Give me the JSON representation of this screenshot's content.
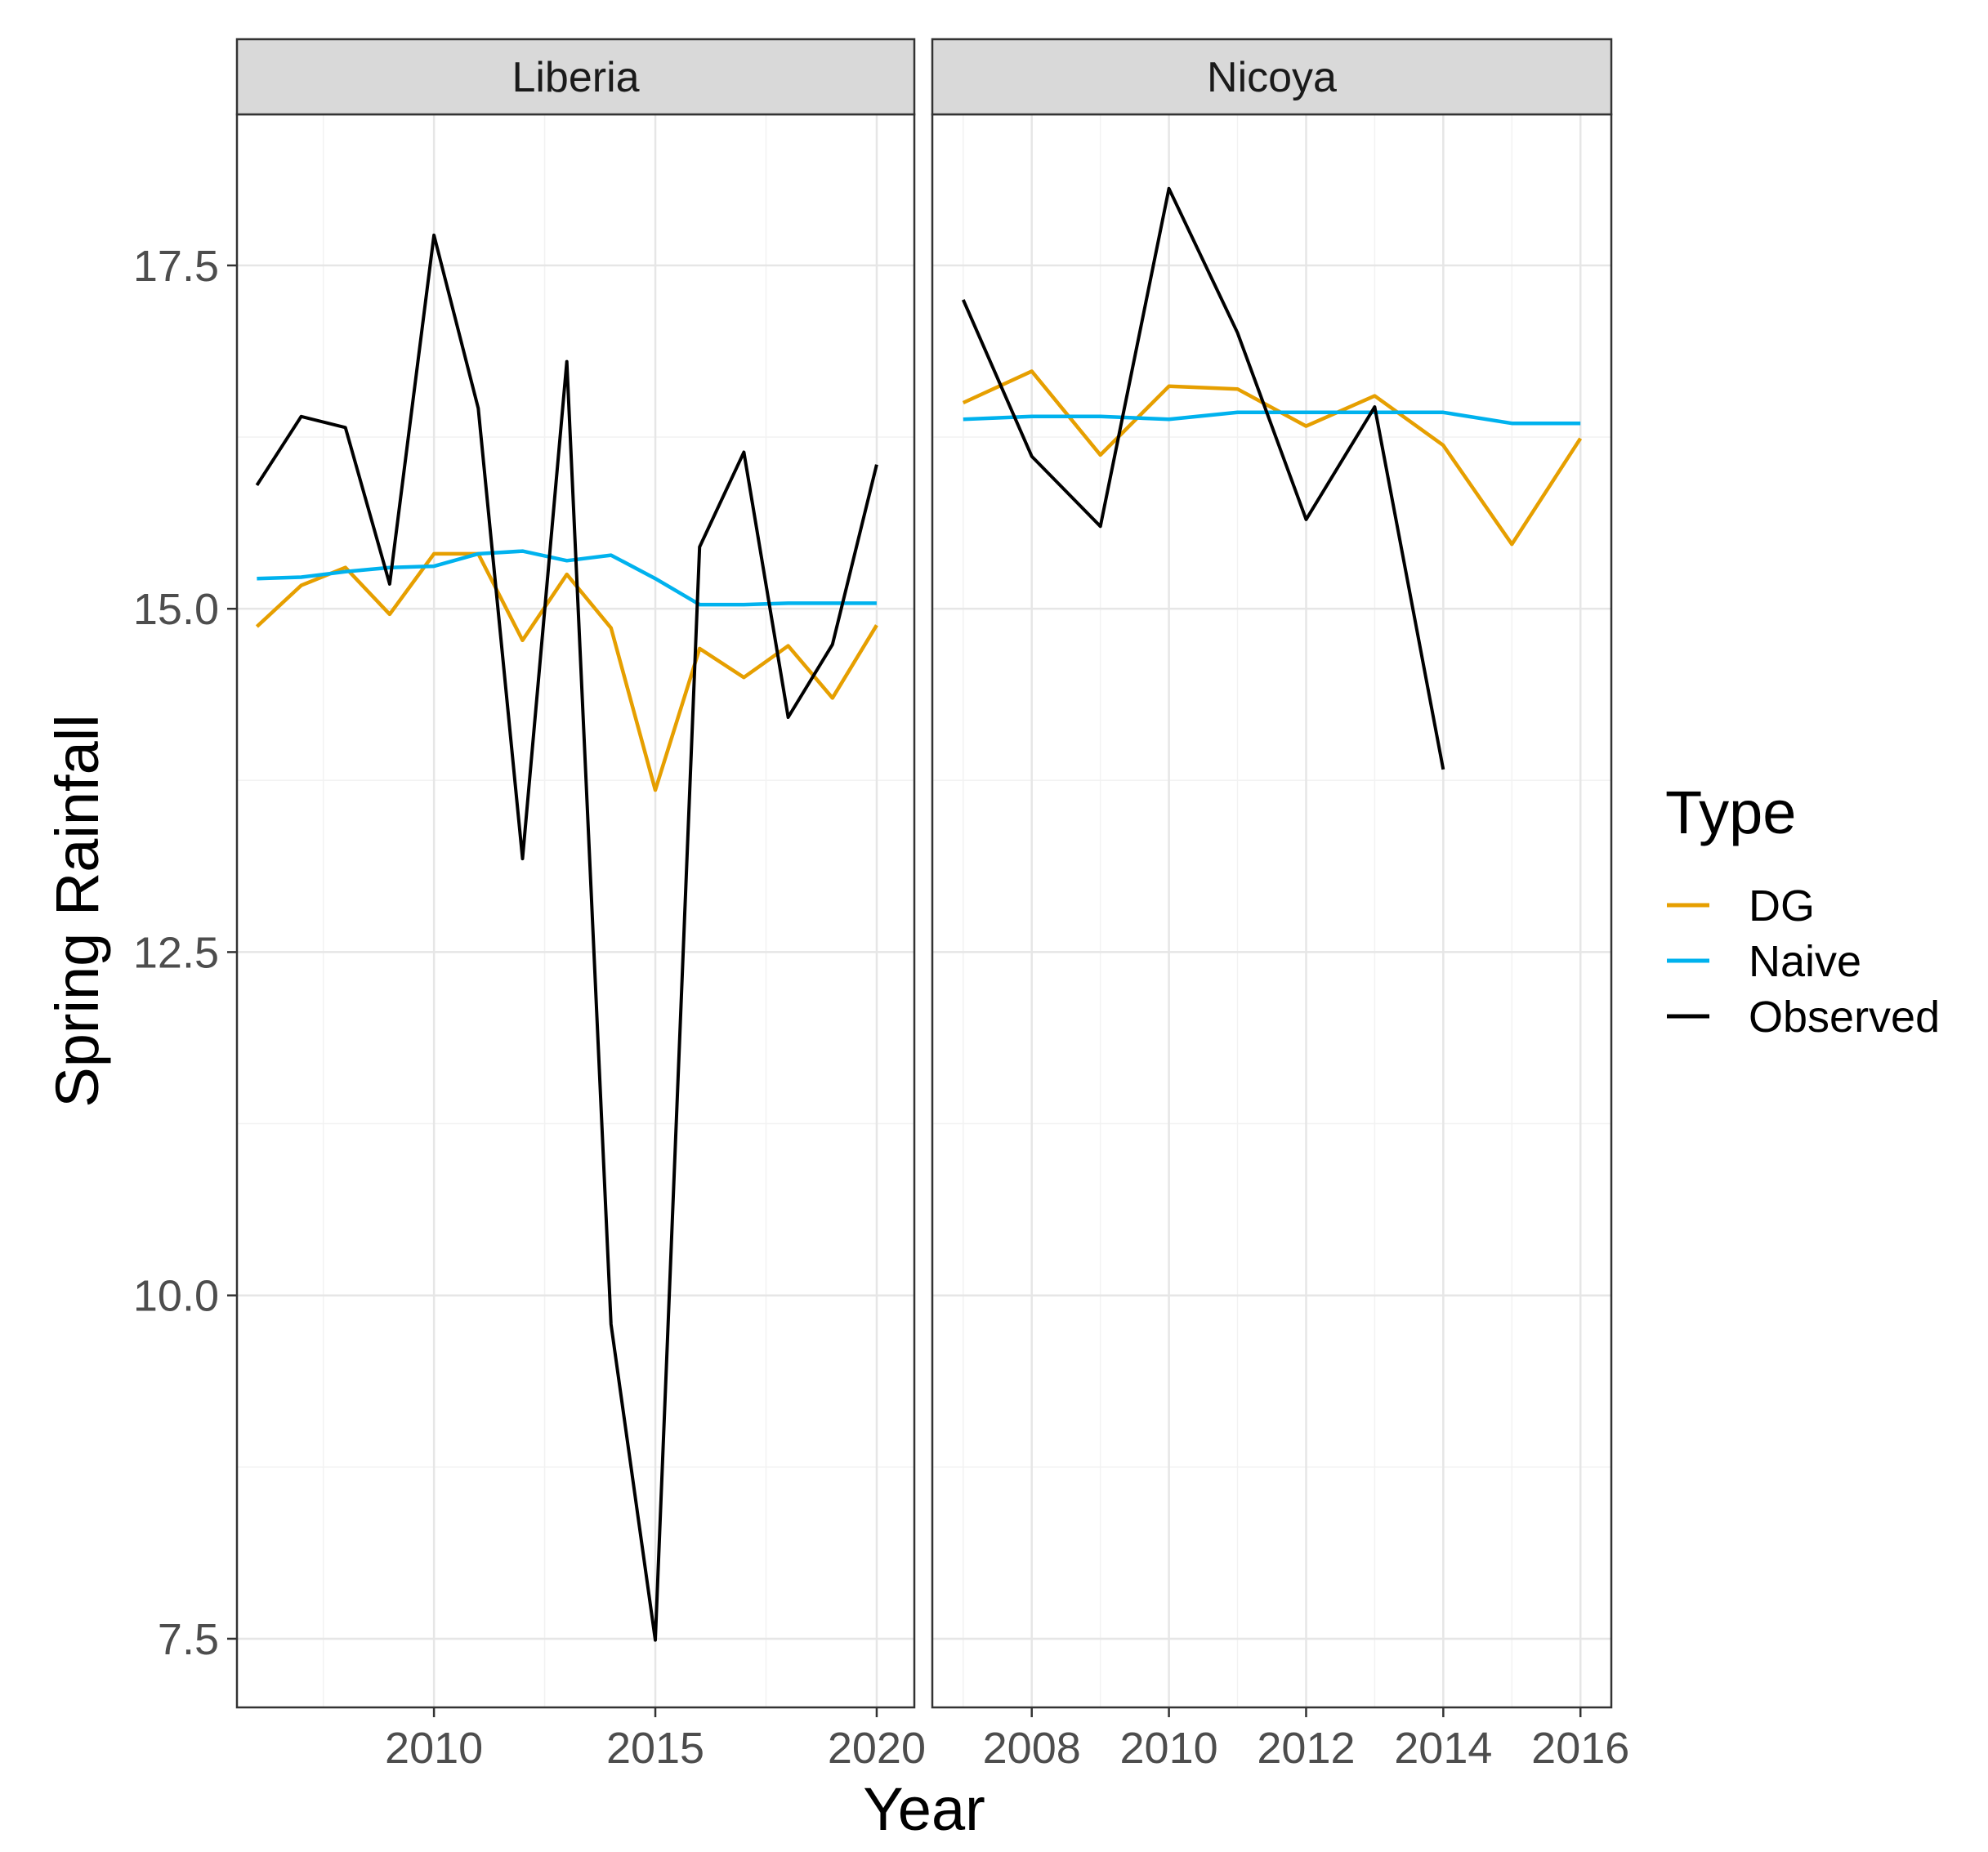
{
  "chart_data": {
    "type": "line",
    "ylabel": "Spring Rainfall",
    "xlabel": "Year",
    "ylim": [
      7.0,
      18.6
    ],
    "y_ticks": [
      7.5,
      10.0,
      12.5,
      15.0,
      17.5
    ],
    "y_tick_labels": [
      "7.5",
      "10.0",
      "12.5",
      "15.0",
      "17.5"
    ],
    "grid": true,
    "legend": {
      "title": "Type",
      "position": "right",
      "entries": [
        {
          "label": "DG",
          "color": "#E69F00"
        },
        {
          "label": "Naive",
          "color": "#00B2EE"
        },
        {
          "label": "Observed",
          "color": "#000000"
        }
      ]
    },
    "facets": [
      {
        "title": "Liberia",
        "xlim": [
          2005.55,
          2020.85
        ],
        "x_ticks": [
          2010,
          2015,
          2020
        ],
        "x_tick_labels": [
          "2010",
          "2015",
          "2020"
        ],
        "series": [
          {
            "name": "DG",
            "x": [
              2006,
              2007,
              2008,
              2009,
              2010,
              2011,
              2012,
              2013,
              2014,
              2015,
              2016,
              2017,
              2018,
              2019,
              2020
            ],
            "y": [
              14.87,
              15.17,
              15.3,
              14.96,
              15.4,
              15.4,
              14.77,
              15.25,
              14.86,
              13.68,
              14.71,
              14.5,
              14.73,
              14.35,
              14.88
            ]
          },
          {
            "name": "Naive",
            "x": [
              2006,
              2007,
              2008,
              2009,
              2010,
              2011,
              2012,
              2013,
              2014,
              2015,
              2016,
              2017,
              2018,
              2019,
              2020
            ],
            "y": [
              15.22,
              15.23,
              15.27,
              15.3,
              15.31,
              15.4,
              15.42,
              15.35,
              15.39,
              15.22,
              15.03,
              15.03,
              15.04,
              15.04,
              15.04
            ]
          },
          {
            "name": "Observed",
            "x": [
              2006,
              2007,
              2008,
              2009,
              2010,
              2011,
              2012,
              2013,
              2014,
              2015,
              2016,
              2017,
              2018,
              2019,
              2020
            ],
            "y": [
              15.9,
              16.4,
              16.32,
              15.18,
              17.72,
              16.46,
              13.18,
              16.8,
              9.79,
              7.49,
              15.45,
              16.14,
              14.21,
              14.74,
              16.05
            ]
          }
        ]
      },
      {
        "title": "Nicoya",
        "xlim": [
          2006.55,
          2016.45
        ],
        "x_ticks": [
          2008,
          2010,
          2012,
          2014,
          2016
        ],
        "x_tick_labels": [
          "2008",
          "2010",
          "2012",
          "2014",
          "2016"
        ],
        "series": [
          {
            "name": "DG",
            "x": [
              2007,
              2008,
              2009,
              2010,
              2011,
              2012,
              2013,
              2014,
              2015,
              2016
            ],
            "y": [
              16.5,
              16.73,
              16.12,
              16.62,
              16.6,
              16.33,
              16.55,
              16.19,
              15.47,
              16.24
            ]
          },
          {
            "name": "Naive",
            "x": [
              2007,
              2008,
              2009,
              2010,
              2011,
              2012,
              2013,
              2014,
              2015,
              2016
            ],
            "y": [
              16.38,
              16.4,
              16.4,
              16.38,
              16.43,
              16.43,
              16.43,
              16.43,
              16.35,
              16.35
            ]
          },
          {
            "name": "Observed",
            "x": [
              2007,
              2008,
              2009,
              2010,
              2011,
              2012,
              2013,
              2014
            ],
            "y": [
              17.25,
              16.11,
              15.6,
              18.06,
              17.01,
              15.65,
              16.47,
              13.83
            ]
          }
        ]
      }
    ]
  }
}
